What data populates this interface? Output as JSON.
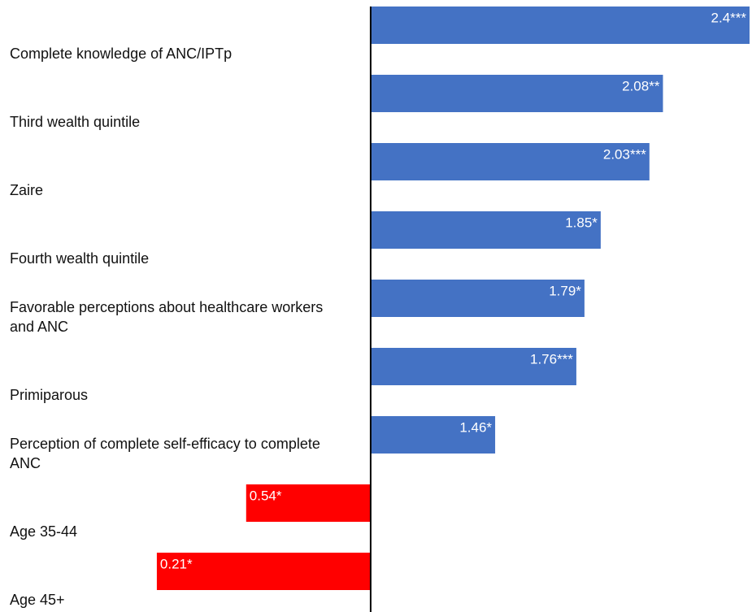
{
  "chart_data": {
    "type": "barh",
    "categories": [
      "Complete knowledge of ANC/IPTp",
      "Third wealth quintile",
      "Zaire",
      "Fourth wealth quintile",
      "Favorable perceptions about healthcare workers and ANC",
      "Primiparous",
      "Perception of complete self-efficacy to complete ANC",
      "Age 35-44",
      "Age 45+"
    ],
    "values": [
      2.4,
      2.08,
      2.03,
      1.85,
      1.79,
      1.76,
      1.46,
      0.54,
      0.21
    ],
    "value_labels": [
      "2.4***",
      "2.08**",
      "2.03***",
      "1.85*",
      "1.79*",
      "1.76***",
      "1.46*",
      "0.54*",
      "0.21*"
    ],
    "xlim": [
      0,
      2.4
    ],
    "baseline": 1,
    "color_above": "#4472c4",
    "color_below": "#ff0000"
  }
}
